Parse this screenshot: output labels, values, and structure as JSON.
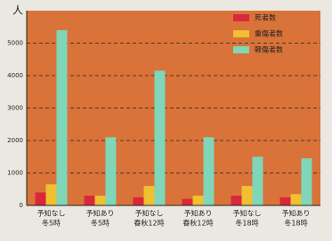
{
  "chart_data": {
    "type": "bar",
    "y_label": "人",
    "categories": [
      [
        "予知なし",
        "冬5時"
      ],
      [
        "予知あり",
        "冬5時"
      ],
      [
        "予知なし",
        "春秋12時"
      ],
      [
        "予知あり",
        "春秋12時"
      ],
      [
        "予知なし",
        "冬18時"
      ],
      [
        "予知あり",
        "冬18時"
      ]
    ],
    "series": [
      {
        "name": "死者数",
        "color": "#d8283a",
        "values": [
          400,
          300,
          250,
          200,
          300,
          250
        ]
      },
      {
        "name": "重傷者数",
        "color": "#f0c030",
        "values": [
          650,
          300,
          600,
          300,
          600,
          350
        ]
      },
      {
        "name": "軽傷者数",
        "color": "#7fd6b8",
        "values": [
          5400,
          2100,
          4150,
          2100,
          1500,
          1450
        ]
      }
    ],
    "ylim": [
      0,
      6000
    ],
    "yticks": [
      0,
      1000,
      2000,
      3000,
      4000,
      5000
    ],
    "grid": true,
    "legend": "top-right",
    "background": "#d9733a"
  }
}
